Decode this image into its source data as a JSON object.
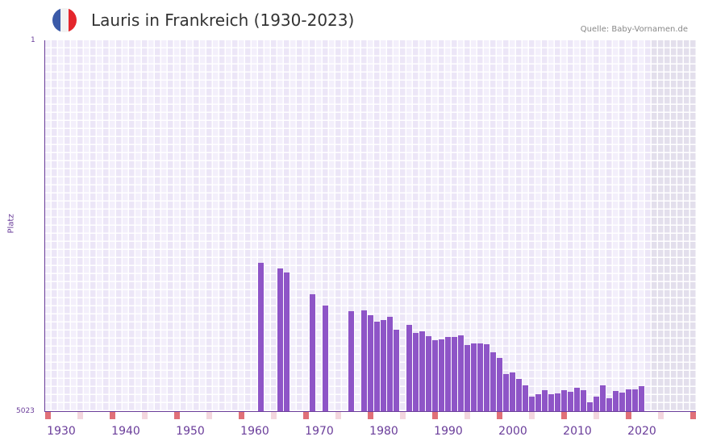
{
  "header": {
    "title": "Lauris in Frankreich (1930-2023)",
    "source": "Quelle: Baby-Vornamen.de",
    "flag_colors": [
      "#3b5aa8",
      "#f2f2f2",
      "#e4262c"
    ]
  },
  "axis": {
    "y_top": "1",
    "y_bottom": "5023",
    "y_title": "Platz",
    "x_ticks": [
      "1930",
      "1940",
      "1950",
      "1960",
      "1970",
      "1980",
      "1990",
      "2000",
      "2010",
      "2020"
    ]
  },
  "colors": {
    "bar": "#8e55c7",
    "axis": "#6a3d9a",
    "marker_decade": "#e07078",
    "marker_half": "#f3d6de",
    "grid_a": "#f3effb",
    "grid_b": "#ece6f7",
    "future_shade": "#e3dfec"
  },
  "chart_data": {
    "type": "bar",
    "title": "Lauris in Frankreich (1930-2023)",
    "xlabel": "",
    "ylabel": "Platz",
    "ylim": [
      5023,
      1
    ],
    "y_inverted": true,
    "x_range": [
      1928,
      2028
    ],
    "categories": [
      1961,
      1964,
      1965,
      1969,
      1971,
      1975,
      1977,
      1978,
      1979,
      1980,
      1981,
      1982,
      1984,
      1985,
      1986,
      1987,
      1988,
      1989,
      1990,
      1991,
      1992,
      1993,
      1994,
      1995,
      1996,
      1997,
      1998,
      1999,
      2000,
      2001,
      2002,
      2003,
      2004,
      2005,
      2006,
      2007,
      2008,
      2009,
      2010,
      2011,
      2012,
      2013,
      2014,
      2015,
      2016,
      2017,
      2018,
      2019,
      2020
    ],
    "values": [
      3013,
      3089,
      3144,
      3439,
      3592,
      3668,
      3657,
      3723,
      3810,
      3788,
      3745,
      3919,
      3854,
      3963,
      3941,
      4006,
      4061,
      4050,
      4017,
      4017,
      3995,
      4126,
      4104,
      4104,
      4115,
      4224,
      4301,
      4519,
      4497,
      4585,
      4672,
      4825,
      4792,
      4738,
      4792,
      4781,
      4738,
      4760,
      4705,
      4738,
      4902,
      4825,
      4672,
      4847,
      4749,
      4770,
      4727,
      4727,
      4683
    ],
    "grid": true,
    "legend": null
  }
}
